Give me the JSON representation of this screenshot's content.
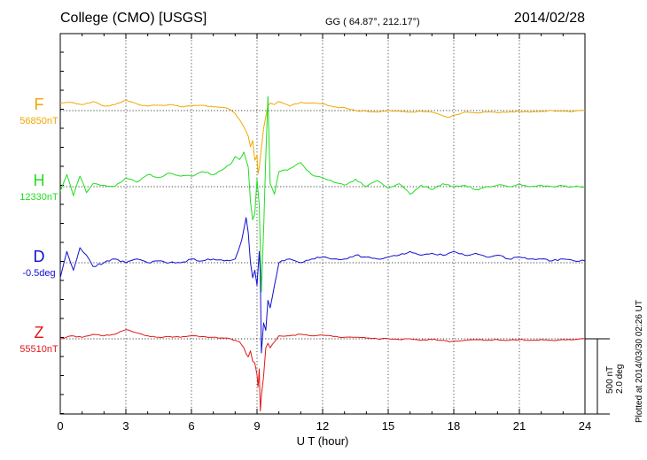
{
  "header": {
    "station": "College (CMO)  [USGS]",
    "coords": "GG ( 64.87°, 212.17°)",
    "date": "2014/02/28"
  },
  "colors": {
    "F": "#f0a800",
    "H": "#22dd22",
    "D": "#1010d0",
    "Z": "#e01818"
  },
  "footer": {
    "plotted": "Plotted at 2014/03/30 02:26 UT"
  },
  "chart_data": {
    "type": "line",
    "xlabel": "U T (hour)",
    "xlim": [
      0,
      24
    ],
    "xticks": [
      "0",
      "3",
      "6",
      "9",
      "12",
      "15",
      "18",
      "21",
      "24"
    ],
    "grid": true,
    "scale": {
      "nt": "500 nT",
      "deg": "2.0 deg"
    },
    "series": [
      {
        "name": "F",
        "baseline": "56850nT",
        "unit": "nT",
        "x": [
          0,
          0.5,
          1,
          1.5,
          2,
          2.5,
          3,
          3.5,
          4,
          4.5,
          5,
          5.5,
          6,
          6.5,
          7,
          7.5,
          7.8,
          8.0,
          8.2,
          8.4,
          8.6,
          8.7,
          8.8,
          8.9,
          9.0,
          9.05,
          9.1,
          9.2,
          9.3,
          9.4,
          9.5,
          9.6,
          9.8,
          10.0,
          10.5,
          11,
          11.5,
          12,
          12.5,
          13,
          13.5,
          14,
          14.5,
          15,
          15.5,
          16,
          16.5,
          17,
          17.5,
          17.8,
          18,
          18.5,
          19,
          19.5,
          20,
          20.5,
          21,
          21.5,
          22,
          22.5,
          23,
          23.5,
          24
        ],
        "values": [
          50,
          55,
          40,
          60,
          30,
          40,
          70,
          45,
          30,
          35,
          40,
          25,
          30,
          35,
          25,
          20,
          5,
          -20,
          -60,
          -110,
          -170,
          -240,
          -200,
          -330,
          -300,
          -420,
          -380,
          -250,
          -120,
          -40,
          30,
          50,
          40,
          60,
          30,
          55,
          50,
          45,
          25,
          20,
          0,
          -5,
          -10,
          0,
          -5,
          -10,
          -5,
          -10,
          -35,
          -45,
          -30,
          -10,
          -15,
          -10,
          -15,
          -10,
          -5,
          -10,
          -5,
          0,
          -5,
          -5,
          0
        ]
      },
      {
        "name": "H",
        "baseline": "12330nT",
        "unit": "nT",
        "x": [
          0,
          0.3,
          0.6,
          0.9,
          1.2,
          1.5,
          2,
          2.5,
          3,
          3.5,
          4,
          4.5,
          5,
          5.5,
          6,
          6.5,
          7,
          7.5,
          7.8,
          8.0,
          8.2,
          8.4,
          8.6,
          8.7,
          8.8,
          8.9,
          9.0,
          9.1,
          9.2,
          9.3,
          9.4,
          9.5,
          9.6,
          9.8,
          10.0,
          10.5,
          11,
          11.5,
          12,
          12.5,
          13,
          13.5,
          14,
          14.5,
          15,
          15.5,
          16,
          16.5,
          17,
          17.5,
          18,
          18.5,
          19,
          19.5,
          20,
          20.5,
          21,
          21.5,
          22,
          22.5,
          23,
          23.5,
          24
        ],
        "values": [
          -30,
          80,
          -60,
          70,
          -40,
          20,
          10,
          0,
          60,
          30,
          80,
          60,
          90,
          70,
          70,
          100,
          80,
          120,
          150,
          200,
          180,
          230,
          130,
          -100,
          -220,
          -180,
          50,
          -120,
          -700,
          -300,
          200,
          600,
          20,
          -50,
          100,
          120,
          160,
          80,
          60,
          30,
          10,
          50,
          0,
          40,
          -10,
          20,
          -50,
          10,
          -20,
          20,
          0,
          10,
          -20,
          0,
          10,
          0,
          20,
          0,
          10,
          0,
          5,
          0,
          0
        ]
      },
      {
        "name": "D",
        "baseline": "-0.5deg",
        "unit": "deg",
        "x": [
          0,
          0.3,
          0.6,
          0.9,
          1.2,
          1.5,
          2,
          2.5,
          3,
          3.5,
          4,
          4.5,
          5,
          5.5,
          6,
          6.5,
          7,
          7.5,
          8.0,
          8.3,
          8.5,
          8.6,
          8.7,
          8.8,
          8.9,
          9.0,
          9.1,
          9.15,
          9.2,
          9.3,
          9.4,
          9.5,
          9.6,
          9.8,
          10.0,
          10.5,
          11,
          11.5,
          12,
          12.5,
          13,
          13.5,
          14,
          14.5,
          15,
          15.5,
          16,
          16.5,
          17,
          17.5,
          18,
          18.5,
          19,
          19.5,
          20,
          20.5,
          21,
          21.5,
          22,
          22.5,
          23,
          23.5,
          24
        ],
        "values": [
          -0.4,
          0.3,
          -0.2,
          0.4,
          0.2,
          -0.1,
          0.0,
          0.1,
          0.0,
          0.1,
          0.0,
          0.05,
          0.0,
          0.0,
          0.1,
          0.05,
          0.1,
          0.05,
          0.1,
          0.6,
          1.2,
          0.8,
          0.0,
          -0.4,
          -0.2,
          -0.6,
          0.3,
          -0.3,
          -2.4,
          -1.6,
          -1.8,
          -1.0,
          -1.2,
          -0.6,
          0.0,
          0.1,
          0.0,
          0.1,
          0.15,
          0.1,
          0.1,
          0.2,
          0.15,
          0.1,
          0.15,
          0.2,
          0.3,
          0.2,
          0.25,
          0.2,
          0.3,
          0.2,
          0.25,
          0.15,
          0.2,
          0.1,
          0.15,
          0.1,
          0.1,
          0.05,
          0.1,
          0.05,
          0.05
        ]
      },
      {
        "name": "Z",
        "baseline": "55510nT",
        "unit": "nT",
        "x": [
          0,
          0.5,
          1,
          1.5,
          2,
          2.5,
          3,
          3.5,
          4,
          4.5,
          5,
          5.5,
          6,
          6.5,
          7,
          7.5,
          7.8,
          8.0,
          8.2,
          8.4,
          8.5,
          8.6,
          8.7,
          8.8,
          8.9,
          9.0,
          9.05,
          9.1,
          9.15,
          9.2,
          9.3,
          9.4,
          9.5,
          9.6,
          9.8,
          10.0,
          10.5,
          11,
          11.5,
          12,
          12.5,
          13,
          13.5,
          14,
          14.5,
          15,
          15.5,
          16,
          16.5,
          17,
          17.5,
          17.8,
          18,
          18.5,
          19,
          19.5,
          20,
          20.5,
          21,
          21.5,
          22,
          22.5,
          23,
          23.5,
          24
        ],
        "values": [
          0,
          20,
          10,
          30,
          20,
          30,
          60,
          40,
          20,
          10,
          15,
          10,
          20,
          15,
          10,
          5,
          0,
          -10,
          -20,
          -60,
          -100,
          -120,
          -80,
          -150,
          -160,
          -240,
          -320,
          -200,
          -480,
          -380,
          -250,
          -60,
          -30,
          -60,
          -20,
          20,
          20,
          30,
          20,
          25,
          15,
          10,
          10,
          5,
          0,
          0,
          -5,
          0,
          -10,
          -5,
          -10,
          -20,
          -15,
          -10,
          -5,
          -10,
          -5,
          -10,
          -5,
          -10,
          -5,
          -10,
          -5,
          -5,
          0
        ]
      }
    ]
  }
}
